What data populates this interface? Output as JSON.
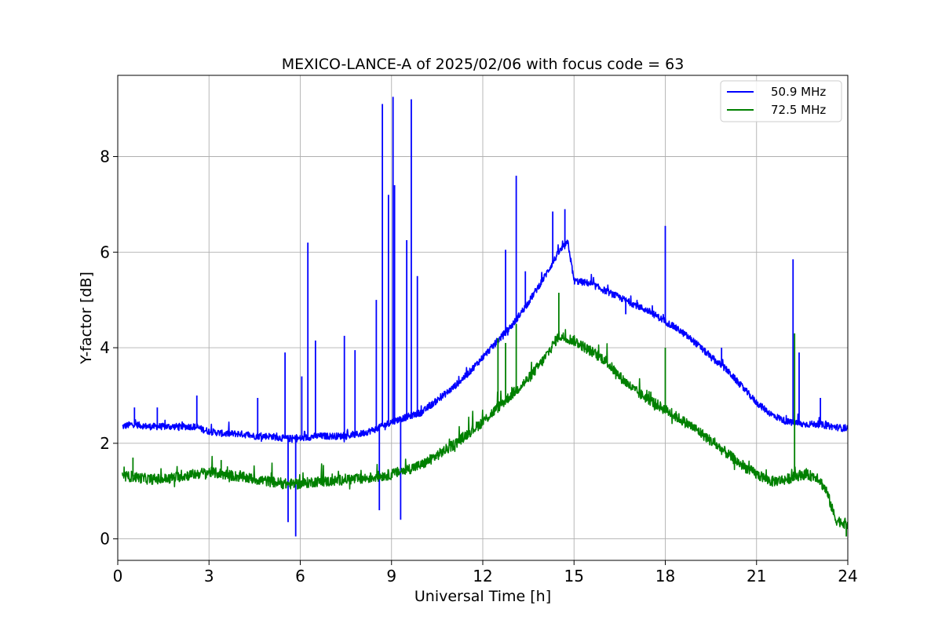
{
  "chart_data": {
    "type": "line",
    "title": "MEXICO-LANCE-A of 2025/02/06 with focus code = 63",
    "xlabel": "Universal Time [h]",
    "ylabel": "Y-factor [dB]",
    "xlim": [
      0,
      24
    ],
    "ylim": [
      -0.45,
      9.7
    ],
    "xticks": [
      0,
      3,
      6,
      9,
      12,
      15,
      18,
      21,
      24
    ],
    "yticks": [
      0,
      2,
      4,
      6,
      8
    ],
    "grid": true,
    "legend_position": "top-right",
    "series": [
      {
        "name": "50.9 MHz",
        "color": "#0000ff",
        "x": [
          0.15,
          0.5,
          1.0,
          1.5,
          2.0,
          2.5,
          3.0,
          3.5,
          4.0,
          4.5,
          5.0,
          5.5,
          6.0,
          6.5,
          7.0,
          7.5,
          8.0,
          8.5,
          9.0,
          9.5,
          10.0,
          10.5,
          11.0,
          11.5,
          12.0,
          12.5,
          13.0,
          13.5,
          14.0,
          14.5,
          14.8,
          15.0,
          15.5,
          16.0,
          16.5,
          17.0,
          17.5,
          18.0,
          18.5,
          19.0,
          19.5,
          20.0,
          20.5,
          21.0,
          21.5,
          22.0,
          22.5,
          23.0,
          23.5,
          24.0
        ],
        "y": [
          2.35,
          2.4,
          2.35,
          2.35,
          2.35,
          2.35,
          2.25,
          2.2,
          2.2,
          2.15,
          2.15,
          2.1,
          2.1,
          2.15,
          2.15,
          2.15,
          2.2,
          2.3,
          2.45,
          2.55,
          2.65,
          2.9,
          3.15,
          3.45,
          3.8,
          4.15,
          4.5,
          4.95,
          5.45,
          6.0,
          6.2,
          5.4,
          5.35,
          5.2,
          5.05,
          4.9,
          4.75,
          4.55,
          4.35,
          4.1,
          3.8,
          3.55,
          3.2,
          2.85,
          2.6,
          2.45,
          2.4,
          2.4,
          2.35,
          2.3
        ],
        "spikes": [
          [
            0.55,
            2.75
          ],
          [
            1.3,
            2.75
          ],
          [
            2.6,
            3.0
          ],
          [
            4.6,
            2.95
          ],
          [
            5.5,
            3.9
          ],
          [
            5.6,
            0.35
          ],
          [
            5.85,
            0.05
          ],
          [
            6.05,
            3.4
          ],
          [
            6.25,
            6.2
          ],
          [
            6.5,
            4.15
          ],
          [
            7.45,
            4.25
          ],
          [
            7.8,
            3.95
          ],
          [
            8.5,
            5.0
          ],
          [
            8.6,
            0.6
          ],
          [
            8.7,
            9.1
          ],
          [
            8.9,
            7.2
          ],
          [
            9.05,
            9.25
          ],
          [
            9.1,
            7.4
          ],
          [
            9.3,
            0.4
          ],
          [
            9.5,
            6.25
          ],
          [
            9.65,
            9.2
          ],
          [
            9.85,
            5.5
          ],
          [
            12.75,
            6.05
          ],
          [
            13.1,
            7.6
          ],
          [
            13.4,
            5.6
          ],
          [
            14.3,
            6.85
          ],
          [
            14.7,
            6.9
          ],
          [
            16.7,
            4.7
          ],
          [
            18.0,
            6.55
          ],
          [
            19.85,
            4.0
          ],
          [
            22.2,
            5.85
          ],
          [
            22.4,
            3.9
          ],
          [
            23.1,
            2.95
          ]
        ]
      },
      {
        "name": "72.5 MHz",
        "color": "#008000",
        "x": [
          0.15,
          0.5,
          1.0,
          1.5,
          2.0,
          2.5,
          3.0,
          3.5,
          4.0,
          4.5,
          5.0,
          5.5,
          6.0,
          6.5,
          7.0,
          7.5,
          8.0,
          8.5,
          9.0,
          9.5,
          10.0,
          10.5,
          11.0,
          11.5,
          12.0,
          12.5,
          13.0,
          13.5,
          14.0,
          14.5,
          15.0,
          15.5,
          16.0,
          16.5,
          17.0,
          17.5,
          18.0,
          18.5,
          19.0,
          19.5,
          20.0,
          20.5,
          21.0,
          21.5,
          22.0,
          22.5,
          23.0,
          23.3,
          23.6,
          24.0
        ],
        "y": [
          1.3,
          1.3,
          1.25,
          1.25,
          1.3,
          1.35,
          1.4,
          1.35,
          1.3,
          1.25,
          1.2,
          1.15,
          1.15,
          1.2,
          1.2,
          1.25,
          1.25,
          1.3,
          1.35,
          1.45,
          1.55,
          1.75,
          1.95,
          2.2,
          2.45,
          2.75,
          3.05,
          3.35,
          3.75,
          4.25,
          4.15,
          3.95,
          3.75,
          3.4,
          3.1,
          2.9,
          2.7,
          2.5,
          2.3,
          2.05,
          1.8,
          1.55,
          1.35,
          1.2,
          1.25,
          1.35,
          1.3,
          1.0,
          0.4,
          0.3
        ],
        "spikes": [
          [
            0.5,
            1.7
          ],
          [
            3.4,
            1.65
          ],
          [
            12.5,
            4.2
          ],
          [
            12.75,
            4.1
          ],
          [
            13.1,
            4.5
          ],
          [
            14.5,
            5.15
          ],
          [
            18.0,
            4.0
          ],
          [
            22.25,
            4.3
          ],
          [
            23.95,
            0.05
          ]
        ]
      }
    ]
  }
}
